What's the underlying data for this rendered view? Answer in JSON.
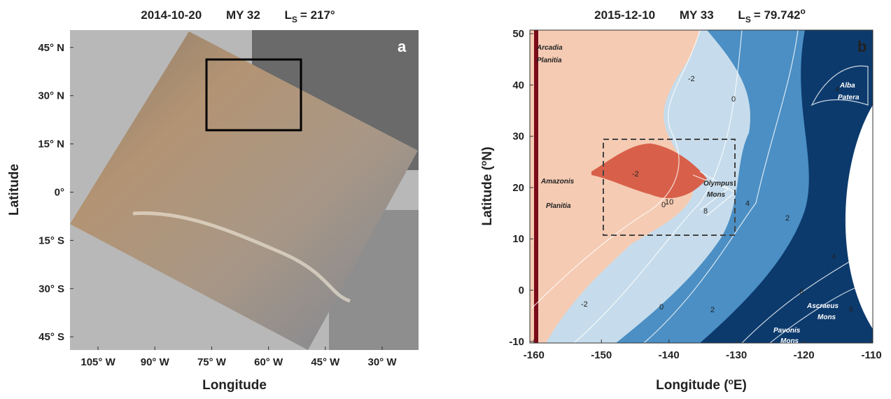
{
  "panels": [
    {
      "title": {
        "date": "2014-10-20",
        "year": "MY 32",
        "ls_symbol": "L",
        "ls_subscript": "S",
        "ls_value": "= 217°"
      },
      "letter": "a",
      "xlabel": "Longitude",
      "ylabel": "Latitude",
      "xlim": [
        -112.4,
        -20.4
      ],
      "ylim": [
        -49.1,
        50.4
      ],
      "xticks": [
        {
          "value": -105,
          "label": "105° W"
        },
        {
          "value": -90,
          "label": "90° W"
        },
        {
          "value": -75,
          "label": "75° W"
        },
        {
          "value": -60,
          "label": "60° W"
        },
        {
          "value": -45,
          "label": "45° W"
        },
        {
          "value": -30,
          "label": "30° W"
        }
      ],
      "yticks": [
        {
          "value": 45,
          "label": "45° N"
        },
        {
          "value": 30,
          "label": "30° N"
        },
        {
          "value": 15,
          "label": "15° N"
        },
        {
          "value": 0,
          "label": "0°"
        },
        {
          "value": -15,
          "label": "15° S"
        },
        {
          "value": -30,
          "label": "30° S"
        },
        {
          "value": -45,
          "label": "45° S"
        }
      ]
    },
    {
      "title": {
        "date": "2015-12-10",
        "year": "MY 33",
        "ls_symbol": "L",
        "ls_subscript": "S",
        "ls_value": "= 79.742",
        "ls_degree": "o"
      },
      "letter": "b",
      "xlabel": {
        "text": "Longitude (",
        "degree": "o",
        "unit": "E)"
      },
      "ylabel": {
        "text": "Latitude (",
        "degree": "o",
        "unit": "N)"
      },
      "xlim": [
        -160.6,
        -109.8
      ],
      "ylim": [
        -10.3,
        50.7
      ],
      "xticks": [
        -160,
        -150,
        -140,
        -130,
        -120,
        -110
      ],
      "yticks": [
        -10,
        0,
        10,
        20,
        30,
        40,
        50
      ],
      "places": [
        "Arcadia",
        "Planitia",
        "Amazonis",
        "Planitia",
        "Olympus",
        "Mons",
        "Alba",
        "Patera",
        "Ascraeus",
        "Mons",
        "Pavonis",
        "Mons"
      ],
      "contour_labels": [
        "-2",
        "0",
        "4",
        "-2",
        "0",
        "10",
        "8",
        "4",
        "2",
        "4",
        "6",
        "8",
        "-2",
        "0",
        "2"
      ]
    }
  ]
}
